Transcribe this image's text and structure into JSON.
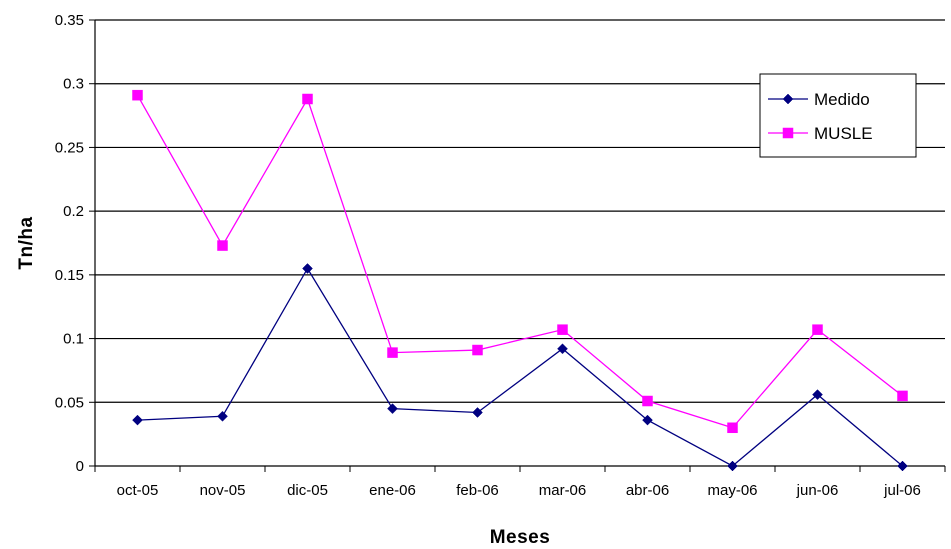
{
  "chart_data": {
    "type": "line",
    "title": "",
    "xlabel": "Meses",
    "ylabel": "Tn/ha",
    "categories": [
      "oct-05",
      "nov-05",
      "dic-05",
      "ene-06",
      "feb-06",
      "mar-06",
      "abr-06",
      "may-06",
      "jun-06",
      "jul-06"
    ],
    "ylim": [
      0,
      0.35
    ],
    "yticks": [
      "0",
      "0.05",
      "0.1",
      "0.15",
      "0.2",
      "0.25",
      "0.3",
      "0.35"
    ],
    "grid": true,
    "legend_position": "top-right",
    "series": [
      {
        "name": "Medido",
        "color": "#000080",
        "marker": "diamond",
        "values": [
          0.036,
          0.039,
          0.155,
          0.045,
          0.042,
          0.092,
          0.036,
          0.0,
          0.056,
          0.0
        ]
      },
      {
        "name": "MUSLE",
        "color": "#ff00ff",
        "marker": "square",
        "values": [
          0.291,
          0.173,
          0.288,
          0.089,
          0.091,
          0.107,
          0.051,
          0.03,
          0.107,
          0.055
        ]
      }
    ]
  }
}
